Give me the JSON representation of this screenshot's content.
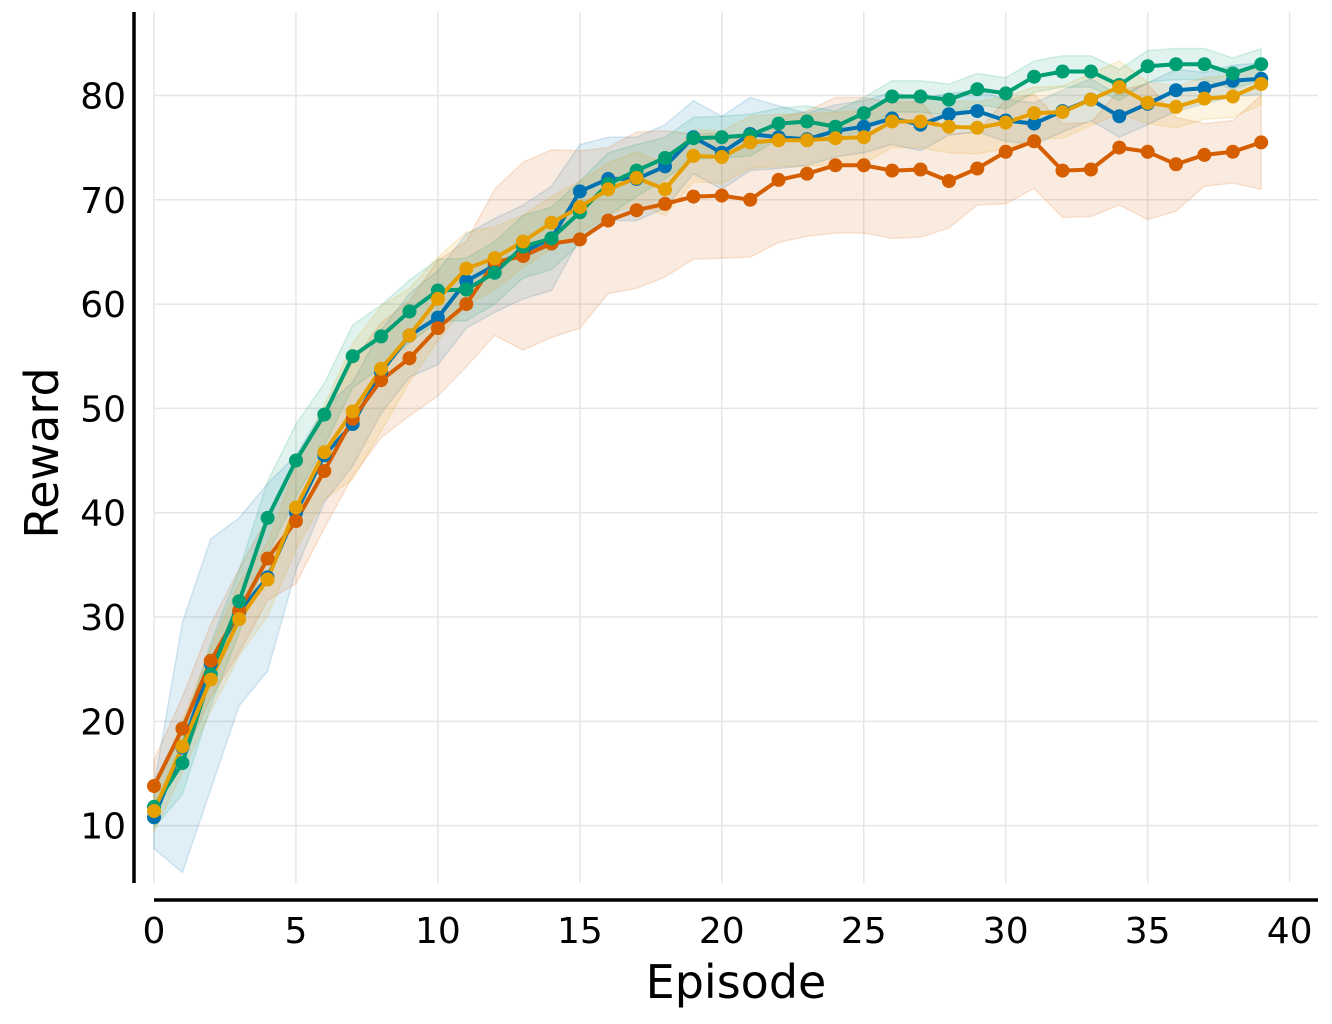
{
  "chart_data": {
    "type": "line",
    "title": "",
    "xlabel": "Episode",
    "ylabel": "Reward",
    "xlim": [
      0,
      41
    ],
    "ylim": [
      4.5,
      88
    ],
    "xticks": [
      0,
      5,
      10,
      15,
      20,
      25,
      30,
      35,
      40
    ],
    "yticks": [
      10,
      20,
      30,
      40,
      50,
      60,
      70,
      80
    ],
    "grid": true,
    "legend": "none",
    "x": [
      0,
      1,
      2,
      3,
      4,
      5,
      6,
      7,
      8,
      9,
      10,
      11,
      12,
      13,
      14,
      15,
      16,
      17,
      18,
      19,
      20,
      21,
      22,
      23,
      24,
      25,
      26,
      27,
      28,
      29,
      30,
      31,
      32,
      33,
      34,
      35,
      36,
      37,
      38,
      39
    ],
    "series": [
      {
        "color": "#0072b2",
        "values": [
          10.8,
          17.5,
          25.5,
          30.5,
          33.8,
          40.0,
          45.5,
          48.5,
          53.5,
          57.0,
          58.7,
          62.2,
          63.7,
          65.0,
          66.3,
          70.8,
          72.0,
          72.0,
          73.2,
          76.0,
          74.5,
          76.3,
          76.0,
          75.8,
          76.6,
          77.0,
          77.8,
          77.2,
          78.2,
          78.5,
          77.6,
          77.3,
          78.5,
          79.6,
          78.0,
          79.2,
          80.5,
          80.7,
          81.4,
          81.6
        ],
        "band": [
          3.0,
          12.0,
          12.0,
          9.0,
          9.0,
          5.5,
          4.5,
          4.0,
          4.0,
          4.0,
          4.5,
          4.5,
          4.5,
          4.5,
          5.0,
          4.5,
          4.0,
          4.0,
          4.0,
          3.5,
          3.5,
          3.5,
          3.0,
          2.5,
          2.5,
          2.5,
          2.5,
          2.5,
          2.0,
          2.0,
          2.0,
          2.0,
          2.0,
          2.0,
          2.0,
          2.0,
          2.0,
          1.5,
          1.5,
          1.5
        ]
      },
      {
        "color": "#d55e00",
        "values": [
          13.8,
          19.3,
          25.8,
          30.6,
          35.6,
          39.2,
          44.0,
          49.0,
          52.7,
          54.8,
          57.7,
          60.0,
          64.0,
          64.6,
          65.8,
          66.2,
          68.0,
          69.0,
          69.6,
          70.3,
          70.4,
          70.0,
          71.9,
          72.5,
          73.3,
          73.3,
          72.8,
          72.9,
          71.8,
          73.0,
          74.6,
          75.6,
          72.8,
          72.9,
          75.0,
          74.6,
          73.4,
          74.3,
          74.6,
          75.5
        ],
        "band": [
          2.5,
          3.0,
          3.5,
          4.0,
          4.0,
          6.0,
          5.5,
          5.5,
          5.5,
          5.5,
          6.5,
          6.0,
          7.0,
          9.0,
          9.0,
          8.5,
          7.0,
          7.5,
          7.0,
          6.0,
          6.0,
          5.5,
          6.0,
          6.0,
          6.5,
          6.5,
          6.5,
          6.5,
          4.5,
          3.5,
          5.0,
          4.5,
          4.5,
          4.5,
          5.5,
          6.5,
          4.5,
          3.0,
          3.0,
          4.5
        ]
      },
      {
        "color": "#009e73",
        "values": [
          11.8,
          16.0,
          24.5,
          31.5,
          39.5,
          45.0,
          49.4,
          55.0,
          56.9,
          59.3,
          61.3,
          61.4,
          63.0,
          65.5,
          66.3,
          68.8,
          71.5,
          72.8,
          74.0,
          75.9,
          76.0,
          76.2,
          77.3,
          77.5,
          77.0,
          78.3,
          79.9,
          79.9,
          79.6,
          80.6,
          80.2,
          81.8,
          82.3,
          82.3,
          81.0,
          82.8,
          83.0,
          83.0,
          82.1,
          83.0
        ],
        "band": [
          2.0,
          3.0,
          3.0,
          3.0,
          3.5,
          3.5,
          3.0,
          3.0,
          3.0,
          3.0,
          3.0,
          3.0,
          3.0,
          3.0,
          3.0,
          3.0,
          3.0,
          2.5,
          2.0,
          2.0,
          2.0,
          2.0,
          1.5,
          1.5,
          1.5,
          1.5,
          1.5,
          1.5,
          1.5,
          1.5,
          1.5,
          1.5,
          1.5,
          1.5,
          1.5,
          1.5,
          1.5,
          1.5,
          1.5,
          1.5
        ]
      },
      {
        "color": "#e69f00",
        "values": [
          11.4,
          17.6,
          24.0,
          29.8,
          33.6,
          40.5,
          45.8,
          49.7,
          53.8,
          57.0,
          60.5,
          63.4,
          64.4,
          66.0,
          67.8,
          69.3,
          71.0,
          72.1,
          71.0,
          74.2,
          74.1,
          75.5,
          75.7,
          75.7,
          75.9,
          76.0,
          77.5,
          77.5,
          77.0,
          76.9,
          77.4,
          78.3,
          78.4,
          79.6,
          80.8,
          79.3,
          78.9,
          79.7,
          79.9,
          81.1
        ],
        "band": [
          2.0,
          2.5,
          3.0,
          3.5,
          3.5,
          4.0,
          4.5,
          6.5,
          6.0,
          4.5,
          4.0,
          3.5,
          3.0,
          2.5,
          2.5,
          2.5,
          2.5,
          2.5,
          2.5,
          2.5,
          2.5,
          2.5,
          2.5,
          2.5,
          2.5,
          2.5,
          2.5,
          2.5,
          2.5,
          2.5,
          2.5,
          2.5,
          2.5,
          2.5,
          2.5,
          2.0,
          2.0,
          2.0,
          2.0,
          2.0
        ]
      }
    ]
  }
}
